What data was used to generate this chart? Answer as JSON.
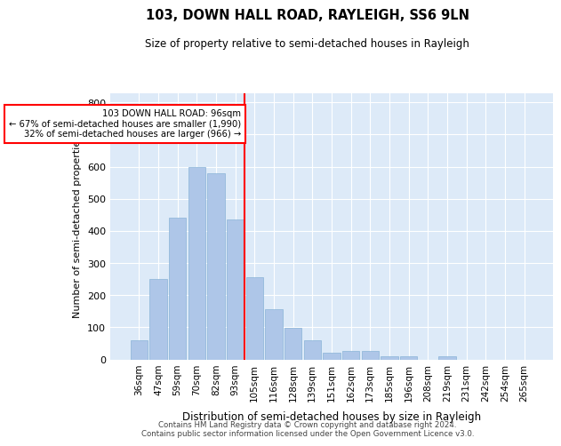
{
  "title1": "103, DOWN HALL ROAD, RAYLEIGH, SS6 9LN",
  "title2": "Size of property relative to semi-detached houses in Rayleigh",
  "xlabel": "Distribution of semi-detached houses by size in Rayleigh",
  "ylabel": "Number of semi-detached properties",
  "annotation_line1": "103 DOWN HALL ROAD: 96sqm",
  "annotation_line2": "← 67% of semi-detached houses are smaller (1,990)",
  "annotation_line3": "32% of semi-detached houses are larger (966) →",
  "footer1": "Contains HM Land Registry data © Crown copyright and database right 2024.",
  "footer2": "Contains public sector information licensed under the Open Government Licence v3.0.",
  "bar_labels": [
    "36sqm",
    "47sqm",
    "59sqm",
    "70sqm",
    "82sqm",
    "93sqm",
    "105sqm",
    "116sqm",
    "128sqm",
    "139sqm",
    "151sqm",
    "162sqm",
    "173sqm",
    "185sqm",
    "196sqm",
    "208sqm",
    "219sqm",
    "231sqm",
    "242sqm",
    "254sqm",
    "265sqm"
  ],
  "bar_values": [
    60,
    250,
    440,
    600,
    580,
    435,
    255,
    155,
    97,
    60,
    22,
    25,
    25,
    10,
    10,
    0,
    10,
    0,
    0,
    0,
    0
  ],
  "marker_index": 5,
  "bar_color": "#aec6e8",
  "bar_edge_color": "#8ab4d8",
  "marker_color": "red",
  "background_color": "#ddeaf8",
  "ylim": [
    0,
    830
  ],
  "yticks": [
    0,
    100,
    200,
    300,
    400,
    500,
    600,
    700,
    800
  ]
}
